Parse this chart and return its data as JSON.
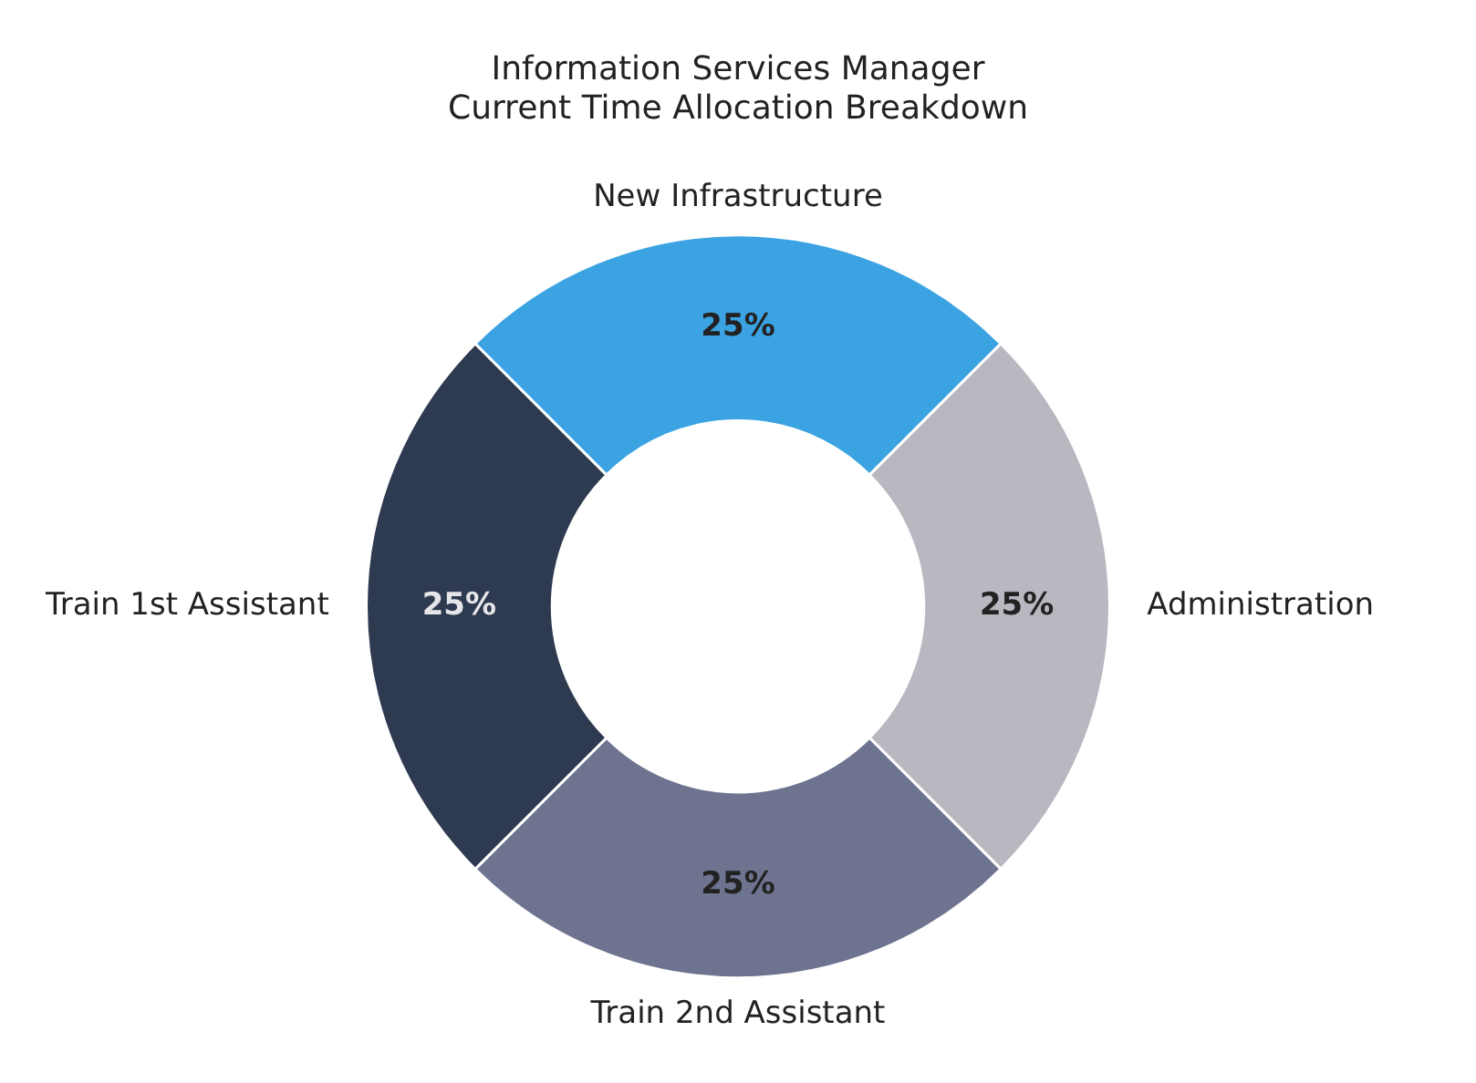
{
  "chart_data": {
    "type": "donut",
    "title": "Information Services Manager\nCurrent Time Allocation Breakdown",
    "categories": [
      "New Infrastructure",
      "Administration",
      "Train 2nd Assistant",
      "Train 1st Assistant"
    ],
    "values": [
      25,
      25,
      25,
      25
    ],
    "colors": [
      "#3ba3e2",
      "#bab7c0",
      "#6e7490",
      "#2e3a4f"
    ],
    "value_labels": [
      "25%",
      "25%",
      "25%",
      "25%"
    ],
    "legend": false
  }
}
